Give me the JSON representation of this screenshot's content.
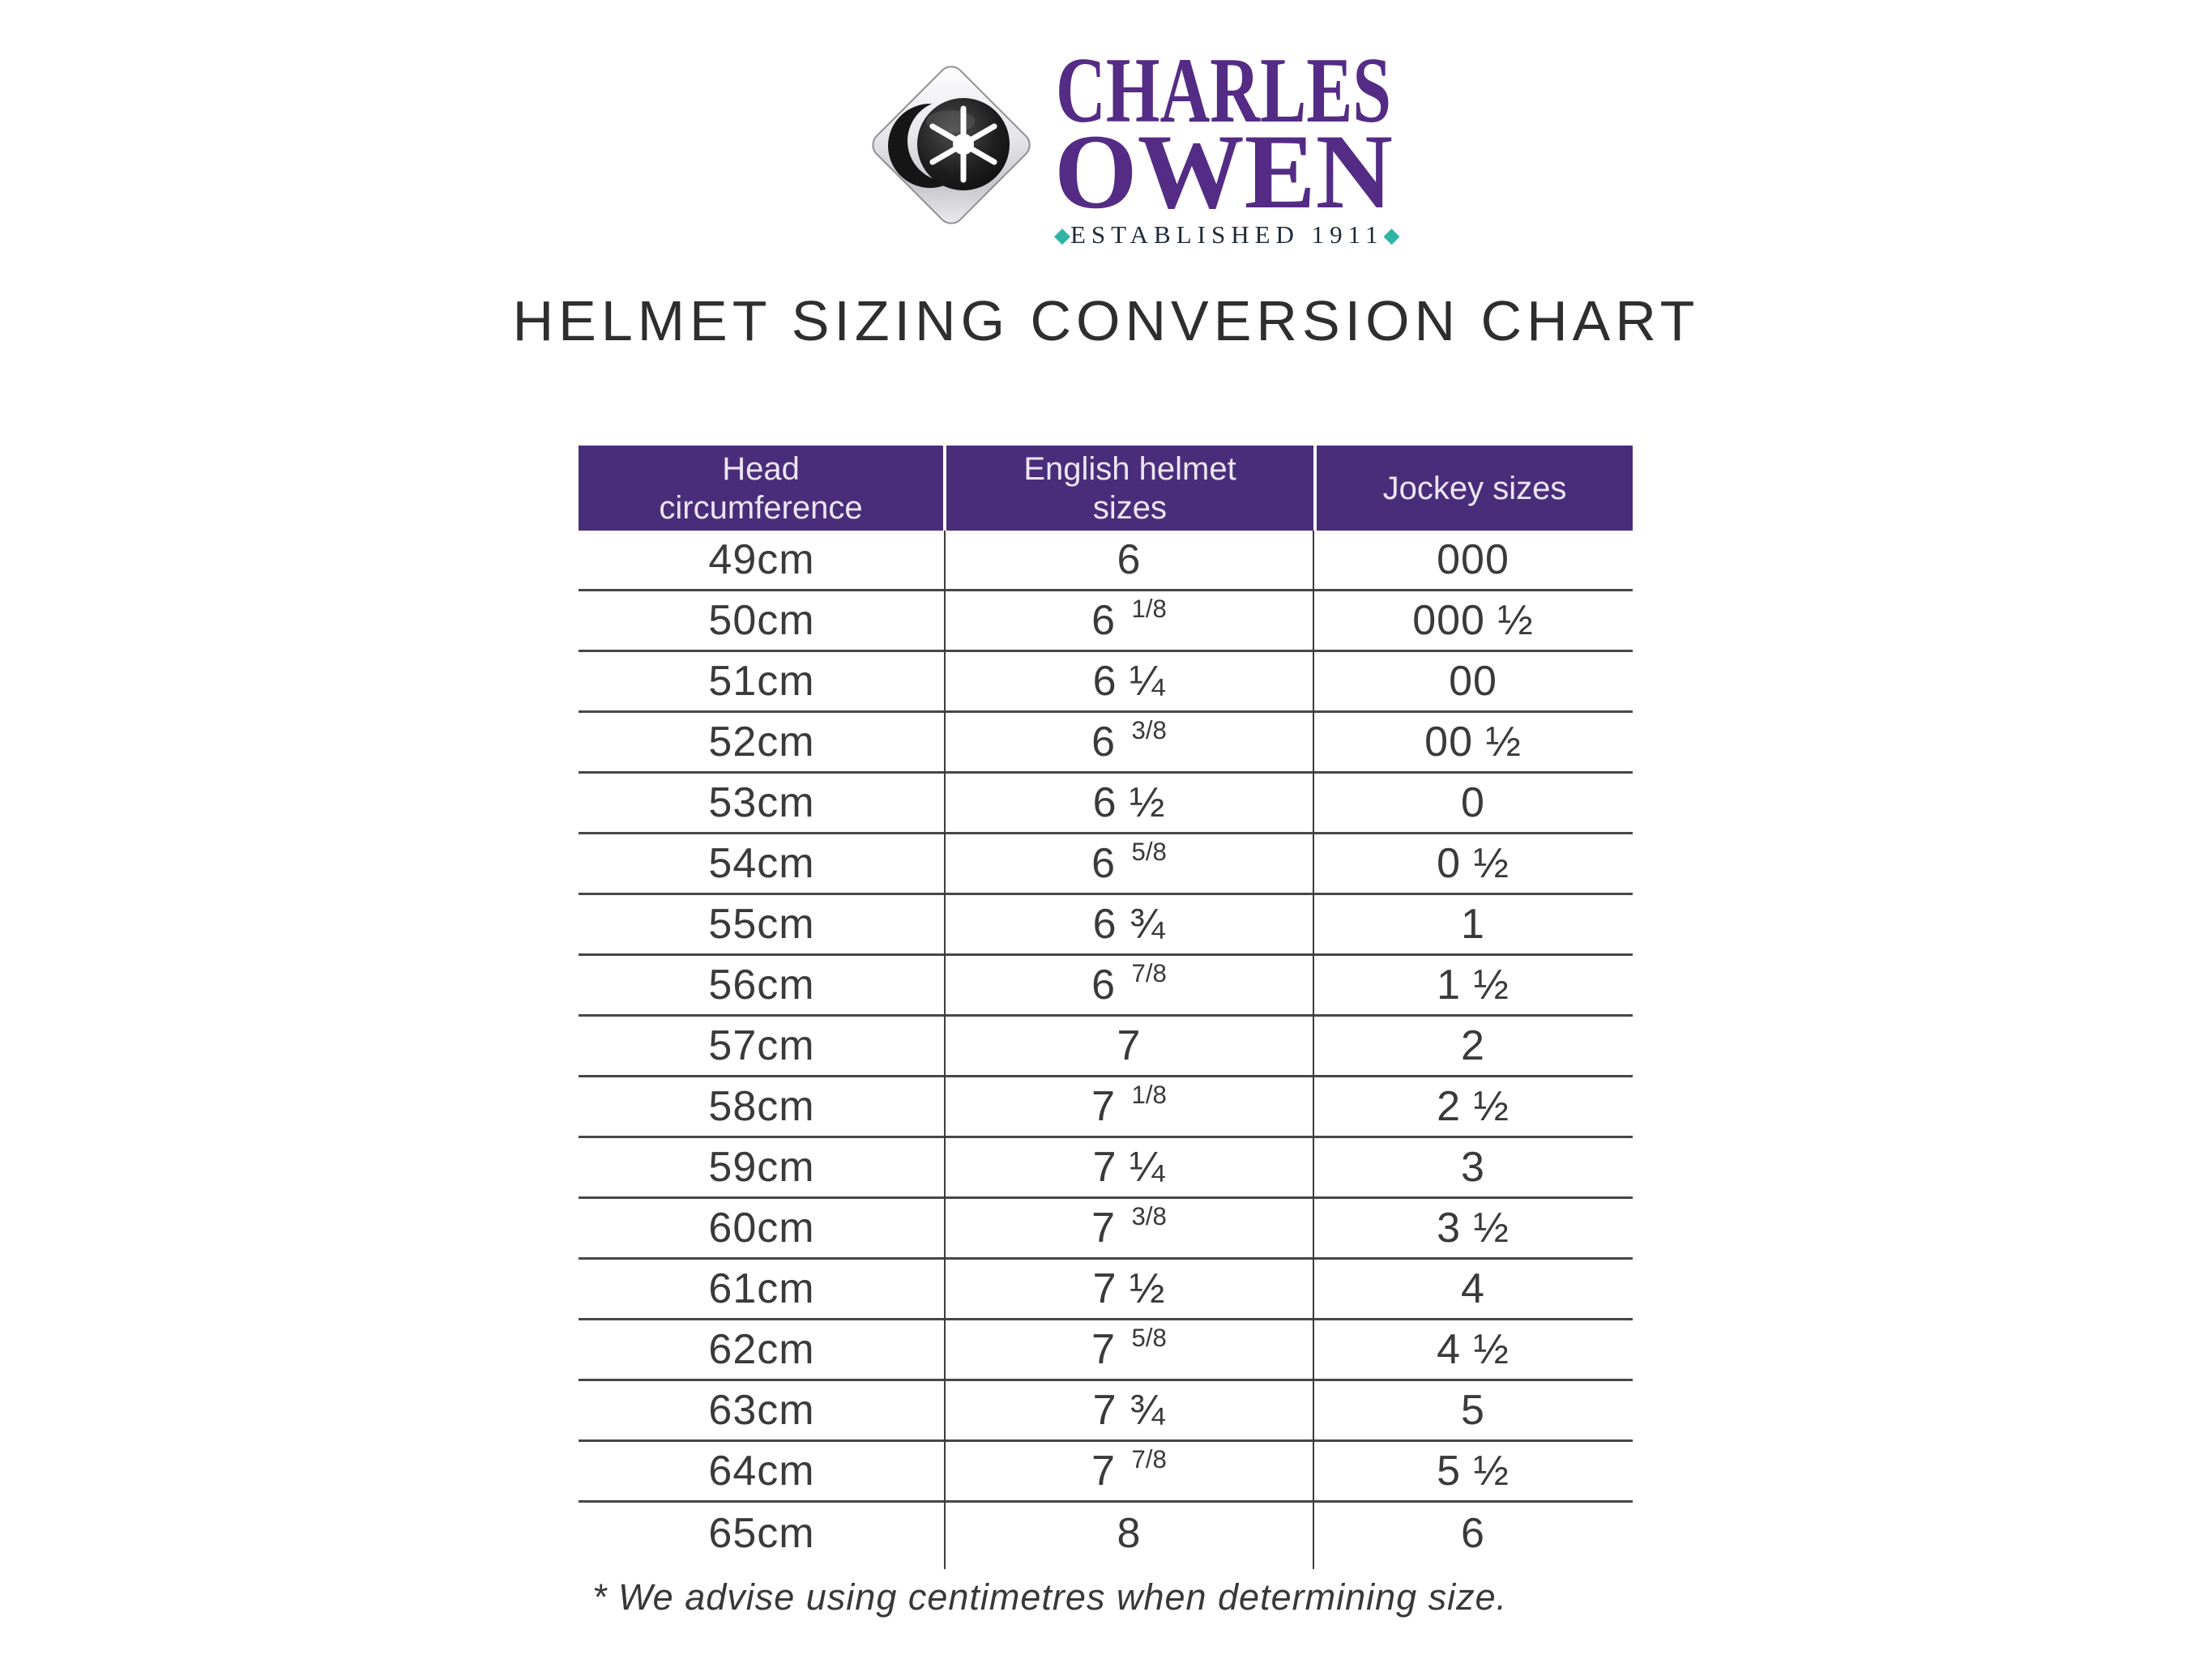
{
  "logo": {
    "line1": "CHARLES",
    "line2": "OWEN",
    "established": "ESTABLISHED 1911",
    "colors": {
      "wordmark_purple": "#542c85",
      "teal_diamond": "#2fb3a4"
    }
  },
  "title": "HELMET SIZING CONVERSION CHART",
  "table": {
    "header_bg": "#4a2d7a",
    "columns": [
      "Head circumference",
      "English helmet sizes",
      "Jockey sizes"
    ],
    "rows": [
      {
        "head_circumference": "49cm",
        "english_helmet_size": "6",
        "jockey_size": "000"
      },
      {
        "head_circumference": "50cm",
        "english_helmet_size": "6 1/8",
        "jockey_size": "000 ½"
      },
      {
        "head_circumference": "51cm",
        "english_helmet_size": "6 ¼",
        "jockey_size": "00"
      },
      {
        "head_circumference": "52cm",
        "english_helmet_size": "6 3/8",
        "jockey_size": "00 ½"
      },
      {
        "head_circumference": "53cm",
        "english_helmet_size": "6 ½",
        "jockey_size": "0"
      },
      {
        "head_circumference": "54cm",
        "english_helmet_size": "6 5/8",
        "jockey_size": "0 ½"
      },
      {
        "head_circumference": "55cm",
        "english_helmet_size": "6 ¾",
        "jockey_size": "1"
      },
      {
        "head_circumference": "56cm",
        "english_helmet_size": "6 7/8",
        "jockey_size": "1 ½"
      },
      {
        "head_circumference": "57cm",
        "english_helmet_size": "7",
        "jockey_size": "2"
      },
      {
        "head_circumference": "58cm",
        "english_helmet_size": "7 1/8",
        "jockey_size": "2 ½"
      },
      {
        "head_circumference": "59cm",
        "english_helmet_size": "7 ¼",
        "jockey_size": "3"
      },
      {
        "head_circumference": "60cm",
        "english_helmet_size": "7 3/8",
        "jockey_size": "3 ½"
      },
      {
        "head_circumference": "61cm",
        "english_helmet_size": "7 ½",
        "jockey_size": "4"
      },
      {
        "head_circumference": "62cm",
        "english_helmet_size": "7 5/8",
        "jockey_size": "4 ½"
      },
      {
        "head_circumference": "63cm",
        "english_helmet_size": "7 ¾",
        "jockey_size": "5"
      },
      {
        "head_circumference": "64cm",
        "english_helmet_size": "7 7/8",
        "jockey_size": "5 ½"
      },
      {
        "head_circumference": "65cm",
        "english_helmet_size": "8",
        "jockey_size": "6"
      }
    ]
  },
  "footnote": "* We advise using centimetres when determining size."
}
